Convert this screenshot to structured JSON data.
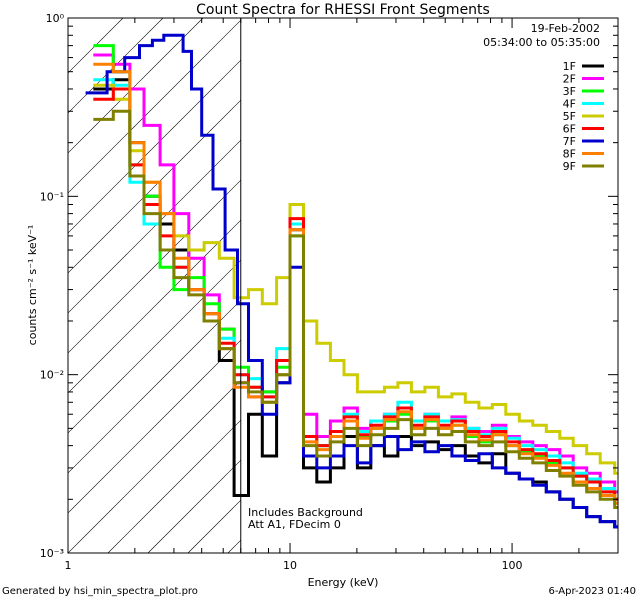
{
  "chart_data": {
    "type": "line",
    "title": "Count Spectra for RHESSI Front Segments",
    "xlabel": "Energy (keV)",
    "ylabel": "counts cm⁻² s⁻¹ keV⁻¹",
    "xscale": "log",
    "yscale": "log",
    "xlim": [
      1,
      300
    ],
    "ylim": [
      0.001,
      1
    ],
    "x_ticks": [
      {
        "value": 1,
        "label": "1"
      },
      {
        "value": 10,
        "label": "10"
      },
      {
        "value": 100,
        "label": "100"
      }
    ],
    "y_ticks": [
      {
        "value": 1,
        "label": "10⁰"
      },
      {
        "value": 0.1,
        "label": "10⁻¹"
      },
      {
        "value": 0.01,
        "label": "10⁻²"
      },
      {
        "value": 0.001,
        "label": "10⁻³"
      }
    ],
    "legend_position": "top-right",
    "date": "19-Feb-2002",
    "time_range": "05:34:00 to 05:35:00",
    "attenuator_region_max_keV": 6,
    "annotations": [
      "Includes Background",
      "Att A1, FDecim 0"
    ],
    "footer_left": "Generated by hsi_min_spectra_plot.pro",
    "footer_right": "6-Apr-2023 01:40",
    "series": [
      {
        "name": "1F",
        "color": "#000000",
        "x": [
          1.3,
          1.6,
          1.9,
          2.2,
          2.6,
          3.0,
          3.5,
          4.1,
          4.8,
          5.6,
          6.5,
          7.5,
          8.7,
          10.0,
          11.5,
          13.2,
          15.2,
          17.5,
          20.1,
          23.1,
          26.6,
          30.6,
          35.2,
          40.5,
          46.6,
          53.6,
          61.6,
          70.9,
          81.5,
          93.7,
          107.8,
          124.0,
          142.6,
          164.0,
          188.5,
          216.8,
          249.4,
          290.0
        ],
        "values": [
          0.4,
          0.45,
          0.2,
          0.1,
          0.07,
          0.05,
          0.03,
          0.022,
          0.012,
          0.0021,
          0.006,
          0.0035,
          0.009,
          0.065,
          0.003,
          0.0025,
          0.003,
          0.0045,
          0.003,
          0.004,
          0.0035,
          0.0045,
          0.004,
          0.0042,
          0.0038,
          0.004,
          0.0035,
          0.0032,
          0.0036,
          0.0028,
          0.0026,
          0.0025,
          0.0022,
          0.002,
          0.0018,
          0.0016,
          0.0015,
          0.0014
        ]
      },
      {
        "name": "2F",
        "color": "#ff00ff",
        "x": [
          1.3,
          1.6,
          1.9,
          2.2,
          2.6,
          3.0,
          3.5,
          4.1,
          4.8,
          5.6,
          6.5,
          7.5,
          8.7,
          10.0,
          11.5,
          13.2,
          15.2,
          17.5,
          20.1,
          23.1,
          26.6,
          30.6,
          35.2,
          40.5,
          46.6,
          53.6,
          61.6,
          70.9,
          81.5,
          93.7,
          107.8,
          124.0,
          142.6,
          164.0,
          188.5,
          216.8,
          249.4,
          290.0
        ],
        "values": [
          0.62,
          0.55,
          0.4,
          0.25,
          0.15,
          0.08,
          0.045,
          0.028,
          0.018,
          0.009,
          0.0075,
          0.008,
          0.012,
          0.07,
          0.006,
          0.0045,
          0.0055,
          0.0065,
          0.005,
          0.0055,
          0.006,
          0.0065,
          0.0055,
          0.006,
          0.0055,
          0.0058,
          0.005,
          0.0048,
          0.0052,
          0.0045,
          0.0042,
          0.004,
          0.0038,
          0.0035,
          0.003,
          0.0028,
          0.0025,
          0.0022
        ]
      },
      {
        "name": "3F",
        "color": "#00ff00",
        "x": [
          1.3,
          1.6,
          1.9,
          2.2,
          2.6,
          3.0,
          3.5,
          4.1,
          4.8,
          5.6,
          6.5,
          7.5,
          8.7,
          10.0,
          11.5,
          13.2,
          15.2,
          17.5,
          20.1,
          23.1,
          26.6,
          30.6,
          35.2,
          40.5,
          46.6,
          53.6,
          61.6,
          70.9,
          81.5,
          93.7,
          107.8,
          124.0,
          142.6,
          164.0,
          188.5,
          216.8,
          249.4,
          290.0
        ],
        "values": [
          0.7,
          0.5,
          0.15,
          0.1,
          0.04,
          0.03,
          0.035,
          0.025,
          0.018,
          0.011,
          0.0085,
          0.008,
          0.011,
          0.06,
          0.0045,
          0.004,
          0.0045,
          0.0055,
          0.0045,
          0.005,
          0.0055,
          0.006,
          0.005,
          0.0055,
          0.005,
          0.0052,
          0.0045,
          0.0042,
          0.0046,
          0.004,
          0.0037,
          0.0035,
          0.0032,
          0.003,
          0.0027,
          0.0025,
          0.0022,
          0.002
        ]
      },
      {
        "name": "4F",
        "color": "#00ffff",
        "x": [
          1.3,
          1.6,
          1.9,
          2.2,
          2.6,
          3.0,
          3.5,
          4.1,
          4.8,
          5.6,
          6.5,
          7.5,
          8.7,
          10.0,
          11.5,
          13.2,
          15.2,
          17.5,
          20.1,
          23.1,
          26.6,
          30.6,
          35.2,
          40.5,
          46.6,
          53.6,
          61.6,
          70.9,
          81.5,
          93.7,
          107.8,
          124.0,
          142.6,
          164.0,
          188.5,
          216.8,
          249.4,
          290.0
        ],
        "values": [
          0.45,
          0.42,
          0.12,
          0.07,
          0.05,
          0.04,
          0.03,
          0.02,
          0.016,
          0.01,
          0.0095,
          0.0075,
          0.014,
          0.07,
          0.0045,
          0.004,
          0.0045,
          0.006,
          0.0048,
          0.0055,
          0.006,
          0.007,
          0.0055,
          0.006,
          0.0055,
          0.0056,
          0.005,
          0.0046,
          0.005,
          0.0044,
          0.004,
          0.0038,
          0.0035,
          0.0032,
          0.0028,
          0.0026,
          0.0023,
          0.002
        ]
      },
      {
        "name": "5F",
        "color": "#cccc00",
        "x": [
          1.3,
          1.6,
          1.9,
          2.2,
          2.6,
          3.0,
          3.5,
          4.1,
          4.8,
          5.6,
          6.5,
          7.5,
          8.7,
          10.0,
          11.5,
          13.2,
          15.2,
          17.5,
          20.1,
          23.1,
          26.6,
          30.6,
          35.2,
          40.5,
          46.6,
          53.6,
          61.6,
          70.9,
          81.5,
          93.7,
          107.8,
          124.0,
          142.6,
          164.0,
          188.5,
          216.8,
          249.4,
          290.0
        ],
        "values": [
          0.42,
          0.35,
          0.18,
          0.12,
          0.08,
          0.06,
          0.05,
          0.055,
          0.045,
          0.027,
          0.03,
          0.025,
          0.035,
          0.09,
          0.02,
          0.015,
          0.012,
          0.01,
          0.008,
          0.008,
          0.0085,
          0.009,
          0.008,
          0.0085,
          0.0075,
          0.0078,
          0.007,
          0.0065,
          0.0068,
          0.006,
          0.0055,
          0.0052,
          0.0048,
          0.0044,
          0.004,
          0.0036,
          0.0032,
          0.0028
        ]
      },
      {
        "name": "6F",
        "color": "#ff0000",
        "x": [
          1.3,
          1.6,
          1.9,
          2.2,
          2.6,
          3.0,
          3.5,
          4.1,
          4.8,
          5.6,
          6.5,
          7.5,
          8.7,
          10.0,
          11.5,
          13.2,
          15.2,
          17.5,
          20.1,
          23.1,
          26.6,
          30.6,
          35.2,
          40.5,
          46.6,
          53.6,
          61.6,
          70.9,
          81.5,
          93.7,
          107.8,
          124.0,
          142.6,
          164.0,
          188.5,
          216.8,
          249.4,
          290.0
        ],
        "values": [
          0.35,
          0.4,
          0.15,
          0.09,
          0.06,
          0.04,
          0.03,
          0.022,
          0.015,
          0.01,
          0.0085,
          0.0075,
          0.012,
          0.075,
          0.0045,
          0.004,
          0.0048,
          0.0058,
          0.0046,
          0.0052,
          0.0058,
          0.0065,
          0.0052,
          0.0058,
          0.0052,
          0.0055,
          0.0048,
          0.0045,
          0.0048,
          0.0042,
          0.0038,
          0.0036,
          0.0033,
          0.003,
          0.0027,
          0.0025,
          0.0022,
          0.002
        ]
      },
      {
        "name": "7F",
        "color": "#0000cc",
        "x": [
          1.2,
          1.5,
          1.8,
          2.1,
          2.4,
          2.7,
          3.0,
          3.3,
          3.6,
          4.0,
          4.5,
          5.1,
          5.8,
          6.5,
          7.5,
          8.7,
          10.0,
          11.5,
          13.2,
          15.2,
          17.5,
          20.1,
          23.1,
          26.6,
          30.6,
          35.2,
          40.5,
          46.6,
          53.6,
          61.6,
          70.9,
          81.5,
          93.7,
          107.8,
          124.0,
          142.6,
          164.0,
          188.5,
          216.8,
          249.4,
          290.0
        ],
        "values": [
          0.38,
          0.5,
          0.6,
          0.7,
          0.75,
          0.8,
          0.8,
          0.65,
          0.4,
          0.22,
          0.11,
          0.05,
          0.025,
          0.012,
          0.006,
          0.009,
          0.04,
          0.0035,
          0.003,
          0.0035,
          0.004,
          0.0032,
          0.004,
          0.0045,
          0.0038,
          0.0042,
          0.0037,
          0.004,
          0.0035,
          0.0033,
          0.0036,
          0.003,
          0.0028,
          0.0026,
          0.0024,
          0.0022,
          0.002,
          0.0018,
          0.0016,
          0.0015,
          0.0014
        ]
      },
      {
        "name": "8F",
        "color": "#ff8000",
        "x": [
          1.3,
          1.6,
          1.9,
          2.2,
          2.6,
          3.0,
          3.5,
          4.1,
          4.8,
          5.6,
          6.5,
          7.5,
          8.7,
          10.0,
          11.5,
          13.2,
          15.2,
          17.5,
          20.1,
          23.1,
          26.6,
          30.6,
          35.2,
          40.5,
          46.6,
          53.6,
          61.6,
          70.9,
          81.5,
          93.7,
          107.8,
          124.0,
          142.6,
          164.0,
          188.5,
          216.8,
          249.4,
          290.0
        ],
        "values": [
          0.55,
          0.5,
          0.2,
          0.12,
          0.08,
          0.045,
          0.03,
          0.022,
          0.014,
          0.0085,
          0.0075,
          0.007,
          0.01,
          0.065,
          0.0042,
          0.0038,
          0.0045,
          0.0055,
          0.0044,
          0.005,
          0.0056,
          0.0062,
          0.005,
          0.0056,
          0.005,
          0.0052,
          0.0046,
          0.0043,
          0.0046,
          0.004,
          0.0036,
          0.0034,
          0.0031,
          0.0028,
          0.0025,
          0.0023,
          0.0021,
          0.0019
        ]
      },
      {
        "name": "9F",
        "color": "#808000",
        "x": [
          1.3,
          1.6,
          1.9,
          2.2,
          2.6,
          3.0,
          3.5,
          4.1,
          4.8,
          5.6,
          6.5,
          7.5,
          8.7,
          10.0,
          11.5,
          13.2,
          15.2,
          17.5,
          20.1,
          23.1,
          26.6,
          30.6,
          35.2,
          40.5,
          46.6,
          53.6,
          61.6,
          70.9,
          81.5,
          93.7,
          107.8,
          124.0,
          142.6,
          164.0,
          188.5,
          216.8,
          249.4,
          290.0
        ],
        "values": [
          0.27,
          0.3,
          0.13,
          0.08,
          0.05,
          0.035,
          0.028,
          0.02,
          0.014,
          0.009,
          0.008,
          0.007,
          0.01,
          0.06,
          0.004,
          0.0035,
          0.0042,
          0.005,
          0.004,
          0.0046,
          0.005,
          0.0056,
          0.0046,
          0.005,
          0.0046,
          0.0048,
          0.0042,
          0.004,
          0.0042,
          0.0037,
          0.0034,
          0.0032,
          0.0029,
          0.0027,
          0.0024,
          0.0022,
          0.002,
          0.0018
        ]
      }
    ]
  }
}
